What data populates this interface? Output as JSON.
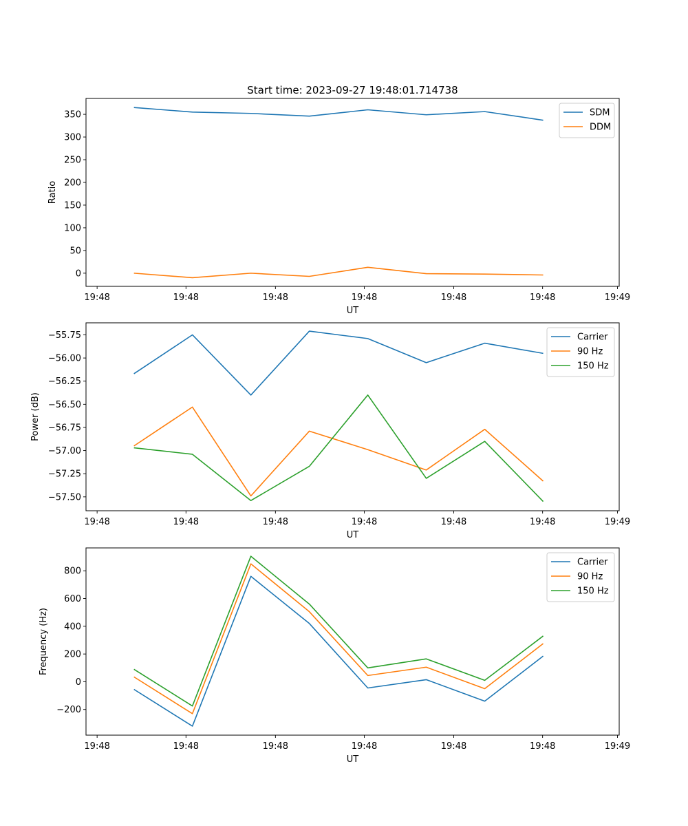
{
  "figure": {
    "title": "Start time: 2023-09-27 19:48:01.714738"
  },
  "colors": {
    "blue": "#1f77b4",
    "orange": "#ff7f0e",
    "green": "#2ca02c"
  },
  "chart_data": [
    {
      "type": "line",
      "title": "Start time: 2023-09-27 19:48:01.714738",
      "xlabel": "UT",
      "ylabel": "Ratio",
      "x": [
        1,
        2,
        3,
        4,
        5,
        6,
        7,
        8
      ],
      "xlim": [
        0.18,
        9.3
      ],
      "x_ticks": [
        0.37,
        1.89,
        3.42,
        4.94,
        6.47,
        7.99,
        9.27
      ],
      "x_tick_labels": [
        "19:48",
        "19:48",
        "19:48",
        "19:48",
        "19:48",
        "19:48",
        "19:49"
      ],
      "ylim": [
        -29,
        385
      ],
      "y_ticks": [
        0,
        50,
        100,
        150,
        200,
        250,
        300,
        350
      ],
      "y_tick_labels": [
        "0",
        "50",
        "100",
        "150",
        "200",
        "250",
        "300",
        "350"
      ],
      "legend": "top-right",
      "series": [
        {
          "name": "SDM",
          "color": "#1f77b4",
          "values": [
            365,
            355,
            352,
            346,
            360,
            349,
            356,
            337
          ]
        },
        {
          "name": "DDM",
          "color": "#ff7f0e",
          "values": [
            0,
            -10,
            0,
            -7,
            13,
            -1,
            -2,
            -4
          ]
        }
      ]
    },
    {
      "type": "line",
      "title": "",
      "xlabel": "UT",
      "ylabel": "Power (dB)",
      "x": [
        1,
        2,
        3,
        4,
        5,
        6,
        7,
        8
      ],
      "xlim": [
        0.18,
        9.3
      ],
      "x_ticks": [
        0.37,
        1.89,
        3.42,
        4.94,
        6.47,
        7.99,
        9.27
      ],
      "x_tick_labels": [
        "19:48",
        "19:48",
        "19:48",
        "19:48",
        "19:48",
        "19:48",
        "19:49"
      ],
      "ylim": [
        -57.65,
        -55.62
      ],
      "y_ticks": [
        -57.5,
        -57.25,
        -57.0,
        -56.75,
        -56.5,
        -56.25,
        -56.0,
        -55.75
      ],
      "y_tick_labels": [
        "−57.50",
        "−57.25",
        "−57.00",
        "−56.75",
        "−56.50",
        "−56.25",
        "−56.00",
        "−55.75"
      ],
      "legend": "top-right",
      "series": [
        {
          "name": "Carrier",
          "color": "#1f77b4",
          "values": [
            -56.17,
            -55.75,
            -56.4,
            -55.71,
            -55.79,
            -56.05,
            -55.84,
            -55.95
          ]
        },
        {
          "name": "90 Hz",
          "color": "#ff7f0e",
          "values": [
            -56.95,
            -56.53,
            -57.49,
            -56.79,
            -56.99,
            -57.21,
            -56.77,
            -57.33
          ]
        },
        {
          "name": "150 Hz",
          "color": "#2ca02c",
          "values": [
            -56.97,
            -57.04,
            -57.54,
            -57.17,
            -56.4,
            -57.3,
            -56.9,
            -57.55
          ]
        }
      ]
    },
    {
      "type": "line",
      "title": "",
      "xlabel": "UT",
      "ylabel": "Frequency (Hz)",
      "x": [
        1,
        2,
        3,
        4,
        5,
        6,
        7,
        8
      ],
      "xlim": [
        0.18,
        9.3
      ],
      "x_ticks": [
        0.37,
        1.89,
        3.42,
        4.94,
        6.47,
        7.99,
        9.27
      ],
      "x_tick_labels": [
        "19:48",
        "19:48",
        "19:48",
        "19:48",
        "19:48",
        "19:48",
        "19:49"
      ],
      "ylim": [
        -385,
        965
      ],
      "y_ticks": [
        -200,
        0,
        200,
        400,
        600,
        800
      ],
      "y_tick_labels": [
        "−200",
        "0",
        "200",
        "400",
        "600",
        "800"
      ],
      "legend": "top-right",
      "series": [
        {
          "name": "Carrier",
          "color": "#1f77b4",
          "values": [
            -55,
            -320,
            760,
            420,
            -45,
            15,
            -140,
            185
          ]
        },
        {
          "name": "90 Hz",
          "color": "#ff7f0e",
          "values": [
            35,
            -230,
            850,
            505,
            45,
            105,
            -50,
            275
          ]
        },
        {
          "name": "150 Hz",
          "color": "#2ca02c",
          "values": [
            90,
            -175,
            905,
            560,
            100,
            165,
            10,
            330
          ]
        }
      ]
    }
  ]
}
